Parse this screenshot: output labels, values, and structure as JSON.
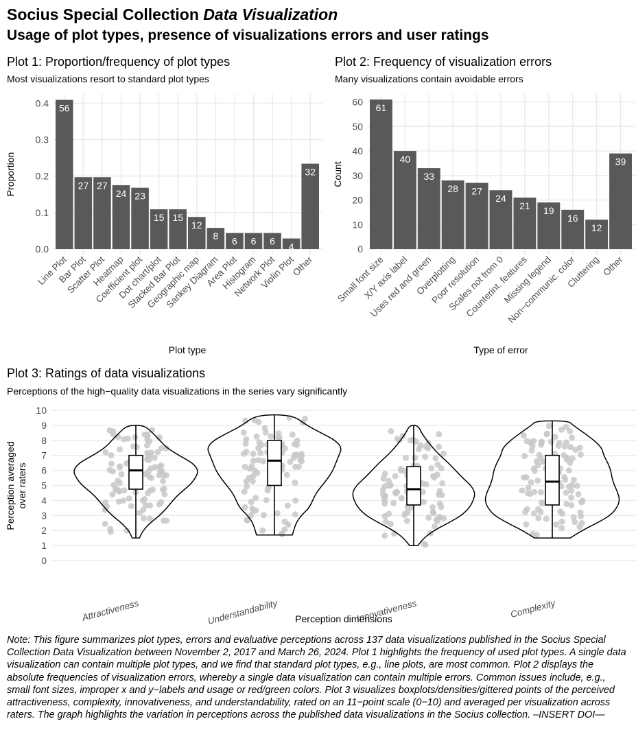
{
  "header": {
    "title_plain": "Socius Special Collection ",
    "title_italic": "Data Visualization",
    "subtitle": "Usage of plot types, presence of visualizations errors and user ratings"
  },
  "plots": {
    "p1": {
      "title": "Plot 1: Proportion/frequency of plot types",
      "subtitle": "Most visualizations resort to standard plot types"
    },
    "p2": {
      "title": "Plot 2: Frequency of visualization errors",
      "subtitle": "Many visualizations contain avoidable errors"
    },
    "p3": {
      "title": "Plot 3: Ratings of data visualizations",
      "subtitle": "Perceptions of the high−quality data visualizations in the series vary significantly"
    }
  },
  "note": "Note: This figure summarizes plot types, errors and evaluative perceptions across 137 data visualizations published in the Socius Special Collection Data Visualization between November 2, 2017 and March 26, 2024. Plot 1 highlights the frequency of used plot types. A single data visualization can contain multiple plot types, and we find that standard plot types, e.g., line plots, are most common. Plot 2 displays the absolute frequencies of visualization errors, whereby a single data visualization can contain multiple errors. Common issues include, e.g., small font sizes, improper x and y−labels and usage or red/green colors. Plot 3 visualizes boxplots/densities/gittered points of the perceived attractiveness, complexity, innovativeness, and understandability, rated on an 11−point scale (0−10) and averaged per visualization across raters. The graph highlights the variation in perceptions across the published data visualizations in the Socius collection. –INSERT DOI—",
  "colors": {
    "bar": "#595959",
    "grid": "#ebebeb",
    "point": "#c8c8c8",
    "label": "#ffffff",
    "axis_text": "#4d4d4d"
  },
  "chart_data": [
    {
      "type": "bar",
      "title": "Plot 1: Proportion/frequency of plot types",
      "xlabel": "Plot type",
      "ylabel": "Proportion",
      "categories": [
        "Line Plot",
        "Bar Plot",
        "Scatter Plot",
        "Heatmap",
        "Coefficient plot",
        "Dot chart/plot",
        "Stacked Bar Plot",
        "Geographic map",
        "Sankey Diagram",
        "Area Plot",
        "Histogram",
        "Network Plot",
        "Violin Plot",
        "Other"
      ],
      "values": [
        56,
        27,
        27,
        24,
        23,
        15,
        15,
        12,
        8,
        6,
        6,
        6,
        4,
        32
      ],
      "proportions": [
        0.409,
        0.197,
        0.197,
        0.175,
        0.168,
        0.109,
        0.109,
        0.088,
        0.058,
        0.044,
        0.044,
        0.044,
        0.029,
        0.234
      ],
      "total_n": 137,
      "yticks": [
        0.0,
        0.1,
        0.2,
        0.3,
        0.4
      ],
      "ytick_labels": [
        "0.0",
        "0.1",
        "0.2",
        "0.3",
        "0.4"
      ],
      "ylim": [
        0,
        0.41
      ],
      "grid": true
    },
    {
      "type": "bar",
      "title": "Plot 2: Frequency of visualization errors",
      "xlabel": "Type of error",
      "ylabel": "Count",
      "categories": [
        "Small font size",
        "X/Y axis label",
        "Uses red and green",
        "Overplotting",
        "Poor resolution",
        "Scales not from 0",
        "Counterint. features",
        "Missing legend",
        "Non−communic. color",
        "Cluttering",
        "Other"
      ],
      "values": [
        61,
        40,
        33,
        28,
        27,
        24,
        21,
        19,
        16,
        12,
        39
      ],
      "yticks": [
        0,
        10,
        20,
        30,
        40,
        50,
        60
      ],
      "ytick_labels": [
        "0",
        "10",
        "20",
        "30",
        "40",
        "50",
        "60"
      ],
      "ylim": [
        0,
        61
      ],
      "grid": true
    },
    {
      "type": "violin",
      "title": "Plot 3: Ratings of data visualizations",
      "xlabel": "Perception dimensions",
      "ylabel": "Perception averaged over raters",
      "ylabel_lines": [
        "Perception averaged",
        "over raters"
      ],
      "categories": [
        "Attractiveness",
        "Understandability",
        "Innovativeness",
        "Complexity"
      ],
      "boxplots": [
        {
          "min": 1.5,
          "q1": 4.75,
          "median": 6.0,
          "q3": 7.0,
          "max": 9.0
        },
        {
          "min": 1.7,
          "q1": 5.0,
          "median": 6.65,
          "q3": 8.0,
          "max": 9.7
        },
        {
          "min": 1.0,
          "q1": 3.7,
          "median": 4.75,
          "q3": 6.25,
          "max": 9.0
        },
        {
          "min": 1.5,
          "q1": 3.7,
          "median": 5.25,
          "q3": 7.0,
          "max": 9.3
        }
      ],
      "density_half_widths": [
        [
          [
            1.5,
            0.06
          ],
          [
            2.0,
            0.12
          ],
          [
            2.5,
            0.24
          ],
          [
            3.0,
            0.4
          ],
          [
            3.5,
            0.52
          ],
          [
            4.0,
            0.62
          ],
          [
            4.5,
            0.74
          ],
          [
            5.0,
            0.9
          ],
          [
            5.5,
            1.0
          ],
          [
            6.0,
            1.05
          ],
          [
            6.5,
            0.95
          ],
          [
            7.0,
            0.72
          ],
          [
            7.5,
            0.52
          ],
          [
            8.0,
            0.4
          ],
          [
            8.5,
            0.28
          ],
          [
            9.0,
            0.14
          ]
        ],
        [
          [
            1.7,
            0.3
          ],
          [
            2.5,
            0.36
          ],
          [
            3.0,
            0.45
          ],
          [
            3.5,
            0.58
          ],
          [
            4.0,
            0.64
          ],
          [
            4.5,
            0.7
          ],
          [
            5.0,
            0.8
          ],
          [
            5.5,
            0.9
          ],
          [
            6.0,
            0.98
          ],
          [
            6.5,
            1.03
          ],
          [
            7.0,
            1.08
          ],
          [
            7.5,
            1.13
          ],
          [
            8.0,
            1.02
          ],
          [
            8.5,
            0.78
          ],
          [
            9.0,
            0.54
          ],
          [
            9.7,
            0.3
          ]
        ],
        [
          [
            1.0,
            0.07
          ],
          [
            1.5,
            0.17
          ],
          [
            2.0,
            0.34
          ],
          [
            2.5,
            0.58
          ],
          [
            3.0,
            0.8
          ],
          [
            3.5,
            0.93
          ],
          [
            4.0,
            1.0
          ],
          [
            4.5,
            1.03
          ],
          [
            5.0,
            0.96
          ],
          [
            5.5,
            0.82
          ],
          [
            6.0,
            0.7
          ],
          [
            6.5,
            0.58
          ],
          [
            7.0,
            0.44
          ],
          [
            7.5,
            0.32
          ],
          [
            8.0,
            0.22
          ],
          [
            8.5,
            0.13
          ],
          [
            9.0,
            0.07
          ]
        ],
        [
          [
            1.5,
            0.3
          ],
          [
            2.0,
            0.5
          ],
          [
            2.5,
            0.75
          ],
          [
            3.0,
            0.97
          ],
          [
            3.5,
            1.08
          ],
          [
            4.0,
            1.13
          ],
          [
            4.5,
            1.1
          ],
          [
            5.0,
            1.04
          ],
          [
            5.5,
            1.0
          ],
          [
            6.0,
            0.98
          ],
          [
            6.5,
            0.93
          ],
          [
            7.0,
            0.86
          ],
          [
            7.5,
            0.83
          ],
          [
            8.0,
            0.7
          ],
          [
            8.5,
            0.53
          ],
          [
            9.0,
            0.35
          ],
          [
            9.3,
            0.27
          ]
        ]
      ],
      "n_points_per_group": 137,
      "yticks": [
        0,
        1,
        2,
        3,
        4,
        5,
        6,
        7,
        8,
        9,
        10
      ],
      "ylim": [
        0,
        10
      ],
      "grid": "horizontal"
    }
  ]
}
